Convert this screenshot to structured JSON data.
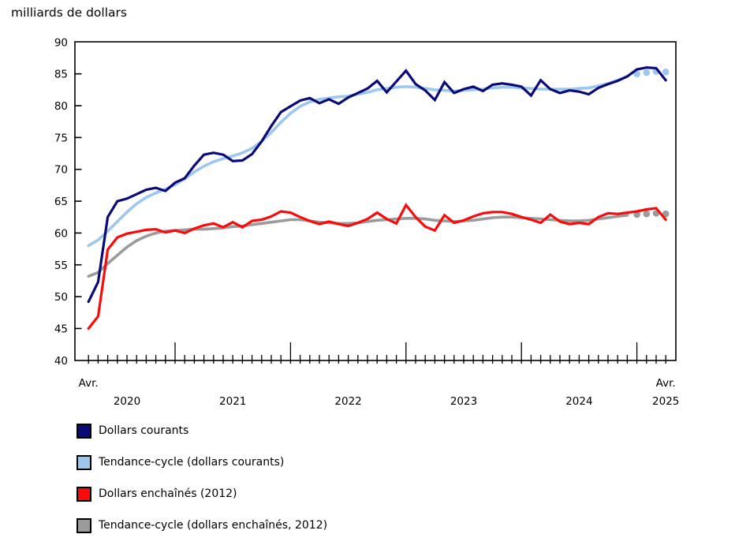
{
  "page": {
    "title": "milliards de dollars"
  },
  "legend": {
    "items": [
      {
        "label": "Dollars courants",
        "color": "#0a0a78"
      },
      {
        "label": "Tendance-cycle (dollars courants)",
        "color": "#9cc7ef"
      },
      {
        "label": "Dollars enchaînés (2012)",
        "color": "#fa0a0a"
      },
      {
        "label": "Tendance-cycle (dollars enchaînés, 2012)",
        "color": "#9b9b9b"
      }
    ]
  },
  "chart_data": {
    "type": "line",
    "title": "milliards de dollars",
    "ylabel": "milliards de dollars",
    "ylim": [
      40,
      90
    ],
    "yticks": [
      90,
      85,
      80,
      75,
      70,
      65,
      60,
      55,
      50,
      45,
      40
    ],
    "x_frequency": "monthly",
    "x_start_label": "Avr. 2020",
    "x_end_label": "Avr. 2025",
    "x_axis_labels": [
      {
        "label": "Avr.",
        "month": 0,
        "row": 0
      },
      {
        "label": "2020",
        "month": 4,
        "row": 1
      },
      {
        "label": "2021",
        "month": 15,
        "row": 1
      },
      {
        "label": "2022",
        "month": 27,
        "row": 1
      },
      {
        "label": "2023",
        "month": 39,
        "row": 1
      },
      {
        "label": "2024",
        "month": 51,
        "row": 1
      },
      {
        "label": "Avr.",
        "month": 60,
        "row": 0
      },
      {
        "label": "2025",
        "month": 60,
        "row": 1
      }
    ],
    "x": [
      "2020-04",
      "2020-05",
      "2020-06",
      "2020-07",
      "2020-08",
      "2020-09",
      "2020-10",
      "2020-11",
      "2020-12",
      "2021-01",
      "2021-02",
      "2021-03",
      "2021-04",
      "2021-05",
      "2021-06",
      "2021-07",
      "2021-08",
      "2021-09",
      "2021-10",
      "2021-11",
      "2021-12",
      "2022-01",
      "2022-02",
      "2022-03",
      "2022-04",
      "2022-05",
      "2022-06",
      "2022-07",
      "2022-08",
      "2022-09",
      "2022-10",
      "2022-11",
      "2022-12",
      "2023-01",
      "2023-02",
      "2023-03",
      "2023-04",
      "2023-05",
      "2023-06",
      "2023-07",
      "2023-08",
      "2023-09",
      "2023-10",
      "2023-11",
      "2023-12",
      "2024-01",
      "2024-02",
      "2024-03",
      "2024-04",
      "2024-05",
      "2024-06",
      "2024-07",
      "2024-08",
      "2024-09",
      "2024-10",
      "2024-11",
      "2024-12",
      "2025-01",
      "2025-02",
      "2025-03",
      "2025-04"
    ],
    "trend_dot_count": 4,
    "series": [
      {
        "name": "Dollars courants",
        "role": "raw",
        "color": "#0a0a78",
        "values": [
          49.2,
          52.3,
          62.5,
          65.0,
          65.4,
          66.1,
          66.8,
          67.1,
          66.6,
          67.9,
          68.6,
          70.6,
          72.3,
          72.6,
          72.3,
          71.3,
          71.4,
          72.4,
          74.4,
          76.8,
          79.0,
          79.9,
          80.8,
          81.2,
          80.4,
          81.0,
          80.3,
          81.3,
          82.0,
          82.7,
          83.9,
          82.1,
          83.8,
          85.5,
          83.4,
          82.4,
          80.9,
          83.7,
          82.0,
          82.6,
          83.0,
          82.3,
          83.3,
          83.5,
          83.3,
          83.0,
          81.6,
          84.0,
          82.6,
          82.0,
          82.4,
          82.2,
          81.8,
          82.8,
          83.4,
          83.9,
          84.6,
          85.7,
          86.0,
          85.9,
          84.0
        ]
      },
      {
        "name": "Tendance-cycle (dollars courants)",
        "role": "trend",
        "color": "#9cc7ef",
        "values": [
          58.0,
          58.9,
          60.3,
          61.8,
          63.3,
          64.6,
          65.6,
          66.3,
          66.9,
          67.6,
          68.5,
          69.6,
          70.5,
          71.2,
          71.7,
          72.1,
          72.6,
          73.3,
          74.4,
          75.8,
          77.4,
          78.8,
          79.9,
          80.6,
          81.0,
          81.2,
          81.4,
          81.5,
          81.8,
          82.1,
          82.5,
          82.7,
          82.9,
          83.0,
          82.9,
          82.7,
          82.5,
          82.4,
          82.3,
          82.4,
          82.5,
          82.6,
          82.8,
          82.9,
          82.9,
          82.8,
          82.7,
          82.6,
          82.6,
          82.6,
          82.6,
          82.7,
          82.8,
          83.1,
          83.5,
          84.0,
          84.6,
          85.0,
          85.2,
          85.4,
          85.3
        ]
      },
      {
        "name": "Dollars enchaînés (2012)",
        "role": "raw",
        "color": "#fa0a0a",
        "values": [
          45.0,
          46.9,
          57.4,
          59.3,
          59.9,
          60.2,
          60.5,
          60.6,
          60.1,
          60.4,
          60.0,
          60.7,
          61.2,
          61.5,
          60.9,
          61.7,
          60.9,
          61.9,
          62.1,
          62.6,
          63.4,
          63.2,
          62.5,
          61.9,
          61.4,
          61.8,
          61.4,
          61.1,
          61.6,
          62.2,
          63.2,
          62.2,
          61.5,
          64.4,
          62.5,
          61.0,
          60.4,
          62.8,
          61.6,
          62.0,
          62.6,
          63.1,
          63.3,
          63.3,
          63.0,
          62.5,
          62.1,
          61.6,
          62.9,
          61.8,
          61.4,
          61.6,
          61.4,
          62.5,
          63.1,
          63.0,
          63.2,
          63.4,
          63.7,
          63.9,
          62.1
        ]
      },
      {
        "name": "Tendance-cycle (dollars enchaînés, 2012)",
        "role": "trend",
        "color": "#9b9b9b",
        "values": [
          53.2,
          53.8,
          55.2,
          56.5,
          57.8,
          58.8,
          59.5,
          60.0,
          60.3,
          60.4,
          60.5,
          60.6,
          60.6,
          60.7,
          60.8,
          61.0,
          61.1,
          61.3,
          61.5,
          61.7,
          61.9,
          62.1,
          62.1,
          61.9,
          61.7,
          61.6,
          61.5,
          61.5,
          61.6,
          61.8,
          62.0,
          62.1,
          62.2,
          62.3,
          62.3,
          62.2,
          62.0,
          61.9,
          61.8,
          61.9,
          62.0,
          62.2,
          62.4,
          62.5,
          62.5,
          62.4,
          62.3,
          62.2,
          62.1,
          62.0,
          61.9,
          61.9,
          62.0,
          62.2,
          62.4,
          62.6,
          62.8,
          62.9,
          63.0,
          63.1,
          63.0
        ]
      }
    ],
    "legend_position": "bottom-left",
    "grid": false
  }
}
